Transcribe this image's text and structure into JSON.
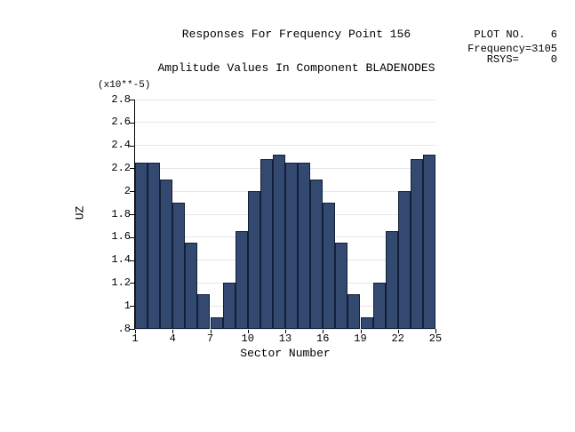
{
  "titles": {
    "line1": "Responses For Frequency Point 156",
    "line2": "Amplitude Values In Component BLADENODES"
  },
  "info_panel": {
    "plot_no_label": "PLOT NO.",
    "plot_no_value": "6",
    "frequency": "Frequency=3105",
    "rsys_label": "RSYS=",
    "rsys_value": "0"
  },
  "chart_data": {
    "type": "bar",
    "title": "Responses For Frequency Point 156",
    "subtitle": "Amplitude Values In Component BLADENODES",
    "xlabel": "Sector Number",
    "ylabel": "UZ",
    "scale_note": "(x10**-5)",
    "xlim": [
      1,
      25
    ],
    "ylim": [
      0.8,
      2.8
    ],
    "x_ticks": [
      {
        "label": "1",
        "v": 1
      },
      {
        "label": "4",
        "v": 4
      },
      {
        "label": "7",
        "v": 7
      },
      {
        "label": "10",
        "v": 10
      },
      {
        "label": "13",
        "v": 13
      },
      {
        "label": "16",
        "v": 16
      },
      {
        "label": "19",
        "v": 19
      },
      {
        "label": "22",
        "v": 22
      },
      {
        "label": "25",
        "v": 25
      }
    ],
    "y_ticks": [
      {
        "label": ".8",
        "v": 0.8
      },
      {
        "label": "1",
        "v": 1.0
      },
      {
        "label": "1.2",
        "v": 1.2
      },
      {
        "label": "1.4",
        "v": 1.4
      },
      {
        "label": "1.6",
        "v": 1.6
      },
      {
        "label": "1.8",
        "v": 1.8
      },
      {
        "label": "2",
        "v": 2.0
      },
      {
        "label": "2.2",
        "v": 2.2
      },
      {
        "label": "2.4",
        "v": 2.4
      },
      {
        "label": "2.6",
        "v": 2.6
      },
      {
        "label": "2.8",
        "v": 2.8
      }
    ],
    "categories": [
      1,
      2,
      3,
      4,
      5,
      6,
      7,
      8,
      9,
      10,
      11,
      12,
      13,
      14,
      15,
      16,
      17,
      18,
      19,
      20,
      21,
      22,
      23,
      24
    ],
    "values": [
      2.25,
      2.25,
      2.1,
      1.9,
      1.55,
      1.1,
      0.9,
      1.2,
      1.65,
      2.0,
      2.28,
      2.32,
      2.25,
      2.25,
      2.1,
      1.9,
      1.55,
      1.1,
      0.9,
      1.2,
      1.65,
      2.0,
      2.28,
      2.32
    ],
    "grid": "faint horizontal lines at y ticks",
    "legend": "none"
  },
  "colors": {
    "bar_fill": "#334970",
    "bar_border": "#121f38",
    "axis": "#000000",
    "grid": "#e6e6ee",
    "text": "#000000",
    "background": "#ffffff"
  }
}
